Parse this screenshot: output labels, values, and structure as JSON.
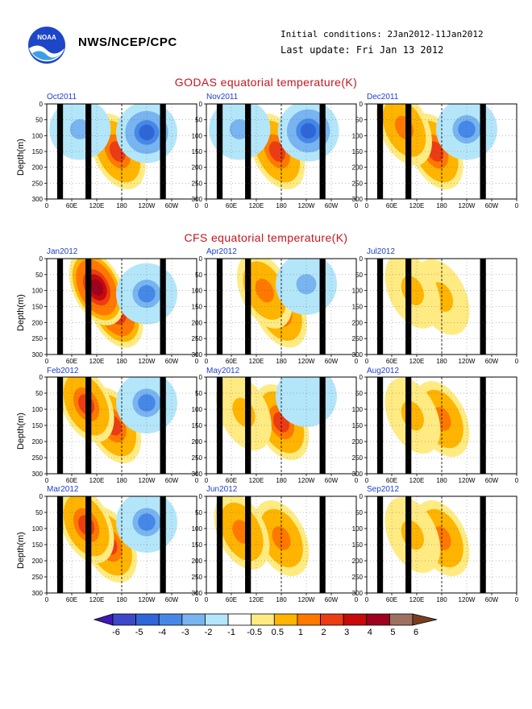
{
  "header": {
    "org": "NWS/NCEP/CPC",
    "initial_conditions": "Initial conditions: 2Jan2012-11Jan2012",
    "last_update": "Last update: Fri Jan 13 2012",
    "logo_text": "NOAA"
  },
  "sections": {
    "godas_title": "GODAS equatorial temperature(K)",
    "cfs_title": "CFS equatorial temperature(K)"
  },
  "axis": {
    "ylabel": "Depth(m)",
    "yticks": [
      "0",
      "50",
      "100",
      "150",
      "200",
      "250",
      "300"
    ],
    "xticks": [
      "0",
      "60E",
      "120E",
      "180",
      "120W",
      "60W",
      "0"
    ]
  },
  "colorbar": {
    "labels": [
      "-6",
      "-5",
      "-4",
      "-3",
      "-2",
      "-1",
      "-0.5",
      "0.5",
      "1",
      "2",
      "3",
      "4",
      "5",
      "6"
    ],
    "colors": [
      "#3d1ab4",
      "#3c48c8",
      "#2f66d8",
      "#4588e8",
      "#78b4f0",
      "#b4e6fa",
      "#ffffff",
      "#ffeb82",
      "#ffb400",
      "#ff7800",
      "#eb3c14",
      "#c80a0a",
      "#a0001e",
      "#9e7060",
      "#7a3e1e"
    ]
  },
  "chart_data": [
    {
      "type": "heatmap",
      "title": "Oct2011",
      "dataset": "GODAS",
      "xlabel": "",
      "ylabel": "Depth(m)",
      "xlim": [
        0,
        360
      ],
      "ylim": [
        300,
        0
      ],
      "features": [
        {
          "kind": "warm",
          "lon": 170,
          "depth": 150,
          "max": 3
        },
        {
          "kind": "cold",
          "lon": 240,
          "depth": 90,
          "max": -4
        },
        {
          "kind": "cold",
          "lon": 80,
          "depth": 80,
          "max": -2
        }
      ]
    },
    {
      "type": "heatmap",
      "title": "Nov2011",
      "dataset": "GODAS",
      "xlabel": "",
      "ylabel": "Depth(m)",
      "xlim": [
        0,
        360
      ],
      "ylim": [
        300,
        0
      ],
      "features": [
        {
          "kind": "warm",
          "lon": 170,
          "depth": 150,
          "max": 3
        },
        {
          "kind": "cold",
          "lon": 245,
          "depth": 85,
          "max": -4
        },
        {
          "kind": "cold",
          "lon": 80,
          "depth": 80,
          "max": -2
        }
      ]
    },
    {
      "type": "heatmap",
      "title": "Dec2011",
      "dataset": "GODAS",
      "xlabel": "",
      "ylabel": "Depth(m)",
      "xlim": [
        0,
        360
      ],
      "ylim": [
        300,
        0
      ],
      "features": [
        {
          "kind": "warm",
          "lon": 165,
          "depth": 150,
          "max": 3
        },
        {
          "kind": "cold",
          "lon": 240,
          "depth": 80,
          "max": -3
        },
        {
          "kind": "warm",
          "lon": 90,
          "depth": 75,
          "max": 2
        }
      ]
    },
    {
      "type": "heatmap",
      "title": "Jan2012",
      "dataset": "CFS",
      "xlabel": "",
      "ylabel": "Depth(m)",
      "xlim": [
        0,
        360
      ],
      "ylim": [
        300,
        0
      ],
      "features": [
        {
          "kind": "warm",
          "lon": 165,
          "depth": 160,
          "max": 4
        },
        {
          "kind": "warm",
          "lon": 120,
          "depth": 90,
          "max": 5
        },
        {
          "kind": "cold",
          "lon": 240,
          "depth": 110,
          "max": -3
        }
      ]
    },
    {
      "type": "heatmap",
      "title": "Apr2012",
      "dataset": "CFS",
      "xlabel": "",
      "ylabel": "Depth(m)",
      "xlim": [
        0,
        360
      ],
      "ylim": [
        300,
        0
      ],
      "features": [
        {
          "kind": "warm",
          "lon": 175,
          "depth": 160,
          "max": 3
        },
        {
          "kind": "warm",
          "lon": 140,
          "depth": 100,
          "max": 2
        },
        {
          "kind": "cold",
          "lon": 240,
          "depth": 80,
          "max": -2
        }
      ]
    },
    {
      "type": "heatmap",
      "title": "Jul2012",
      "dataset": "CFS",
      "xlabel": "",
      "ylabel": "Depth(m)",
      "xlim": [
        0,
        360
      ],
      "ylim": [
        300,
        0
      ],
      "features": [
        {
          "kind": "warm",
          "lon": 180,
          "depth": 120,
          "max": 1
        },
        {
          "kind": "warm",
          "lon": 110,
          "depth": 100,
          "max": 1
        }
      ]
    },
    {
      "type": "heatmap",
      "title": "Feb2012",
      "dataset": "CFS",
      "xlabel": "",
      "ylabel": "Depth(m)",
      "xlim": [
        0,
        360
      ],
      "ylim": [
        300,
        0
      ],
      "features": [
        {
          "kind": "warm",
          "lon": 160,
          "depth": 150,
          "max": 3
        },
        {
          "kind": "warm",
          "lon": 95,
          "depth": 85,
          "max": 3
        },
        {
          "kind": "cold",
          "lon": 240,
          "depth": 80,
          "max": -3
        }
      ]
    },
    {
      "type": "heatmap",
      "title": "May2012",
      "dataset": "CFS",
      "xlabel": "",
      "ylabel": "Depth(m)",
      "xlim": [
        0,
        360
      ],
      "ylim": [
        300,
        0
      ],
      "features": [
        {
          "kind": "warm",
          "lon": 180,
          "depth": 140,
          "max": 3
        },
        {
          "kind": "warm",
          "lon": 90,
          "depth": 110,
          "max": 1
        },
        {
          "kind": "cold",
          "lon": 240,
          "depth": 60,
          "max": -1
        }
      ]
    },
    {
      "type": "heatmap",
      "title": "Aug2012",
      "dataset": "CFS",
      "xlabel": "",
      "ylabel": "Depth(m)",
      "xlim": [
        0,
        360
      ],
      "ylim": [
        300,
        0
      ],
      "features": [
        {
          "kind": "warm",
          "lon": 180,
          "depth": 130,
          "max": 2
        },
        {
          "kind": "warm",
          "lon": 110,
          "depth": 120,
          "max": 1
        }
      ]
    },
    {
      "type": "heatmap",
      "title": "Mar2012",
      "dataset": "CFS",
      "xlabel": "",
      "ylabel": "Depth(m)",
      "xlim": [
        0,
        360
      ],
      "ylim": [
        300,
        0
      ],
      "features": [
        {
          "kind": "warm",
          "lon": 150,
          "depth": 150,
          "max": 3
        },
        {
          "kind": "warm",
          "lon": 95,
          "depth": 90,
          "max": 3
        },
        {
          "kind": "cold",
          "lon": 240,
          "depth": 80,
          "max": -3
        }
      ]
    },
    {
      "type": "heatmap",
      "title": "Jun2012",
      "dataset": "CFS",
      "xlabel": "",
      "ylabel": "Depth(m)",
      "xlim": [
        0,
        360
      ],
      "ylim": [
        300,
        0
      ],
      "features": [
        {
          "kind": "warm",
          "lon": 180,
          "depth": 130,
          "max": 2
        },
        {
          "kind": "warm",
          "lon": 85,
          "depth": 110,
          "max": 2
        }
      ]
    },
    {
      "type": "heatmap",
      "title": "Sep2012",
      "dataset": "CFS",
      "xlabel": "",
      "ylabel": "Depth(m)",
      "xlim": [
        0,
        360
      ],
      "ylim": [
        300,
        0
      ],
      "features": [
        {
          "kind": "warm",
          "lon": 180,
          "depth": 130,
          "max": 2
        },
        {
          "kind": "warm",
          "lon": 110,
          "depth": 120,
          "max": 1
        }
      ]
    }
  ]
}
